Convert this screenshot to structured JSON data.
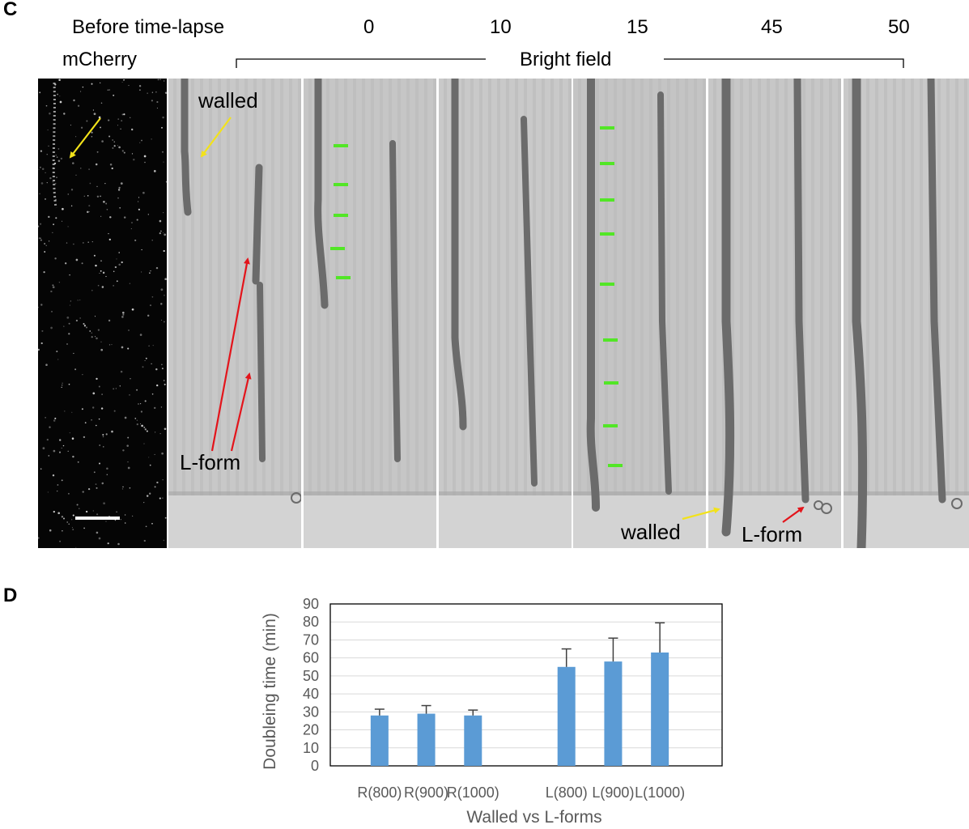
{
  "panel_c": {
    "letter": "C",
    "header_before": "Before time-lapse",
    "header_times": [
      "0",
      "10",
      "15",
      "45",
      "50"
    ],
    "channel_label": "mCherry",
    "bright_field_label": "Bright field",
    "annotations": {
      "walled_top": "walled",
      "lform_left": "L-form",
      "walled_bottom": "walled",
      "lform_bottom": "L-form"
    },
    "colors": {
      "arrow_yellow": "#f2e21a",
      "arrow_red": "#e3141b",
      "tick_green": "#52e626",
      "scale_bar": "#ffffff"
    }
  },
  "panel_d": {
    "letter": "D",
    "colors": {
      "bar": "#5b9bd5",
      "grid": "#d9d9d9",
      "axis_text": "#595959"
    }
  },
  "chart_data": {
    "type": "bar",
    "categories": [
      "R(800)",
      "R(900)",
      "R(1000)",
      "",
      "L(800)",
      "L(900)",
      "L(1000)"
    ],
    "series": [
      {
        "values": [
          28,
          29,
          28,
          null,
          55,
          58,
          63
        ],
        "error_upper": [
          3.5,
          4.5,
          3,
          null,
          10,
          13,
          16.5
        ]
      }
    ],
    "xlabel": "Walled vs L-forms",
    "ylabel": "Doubleing time (min)",
    "ylim": [
      0,
      90
    ],
    "yticks": [
      "0",
      "10",
      "20",
      "30",
      "40",
      "50",
      "60",
      "70",
      "80",
      "90"
    ],
    "grid": true,
    "legend": "none"
  }
}
